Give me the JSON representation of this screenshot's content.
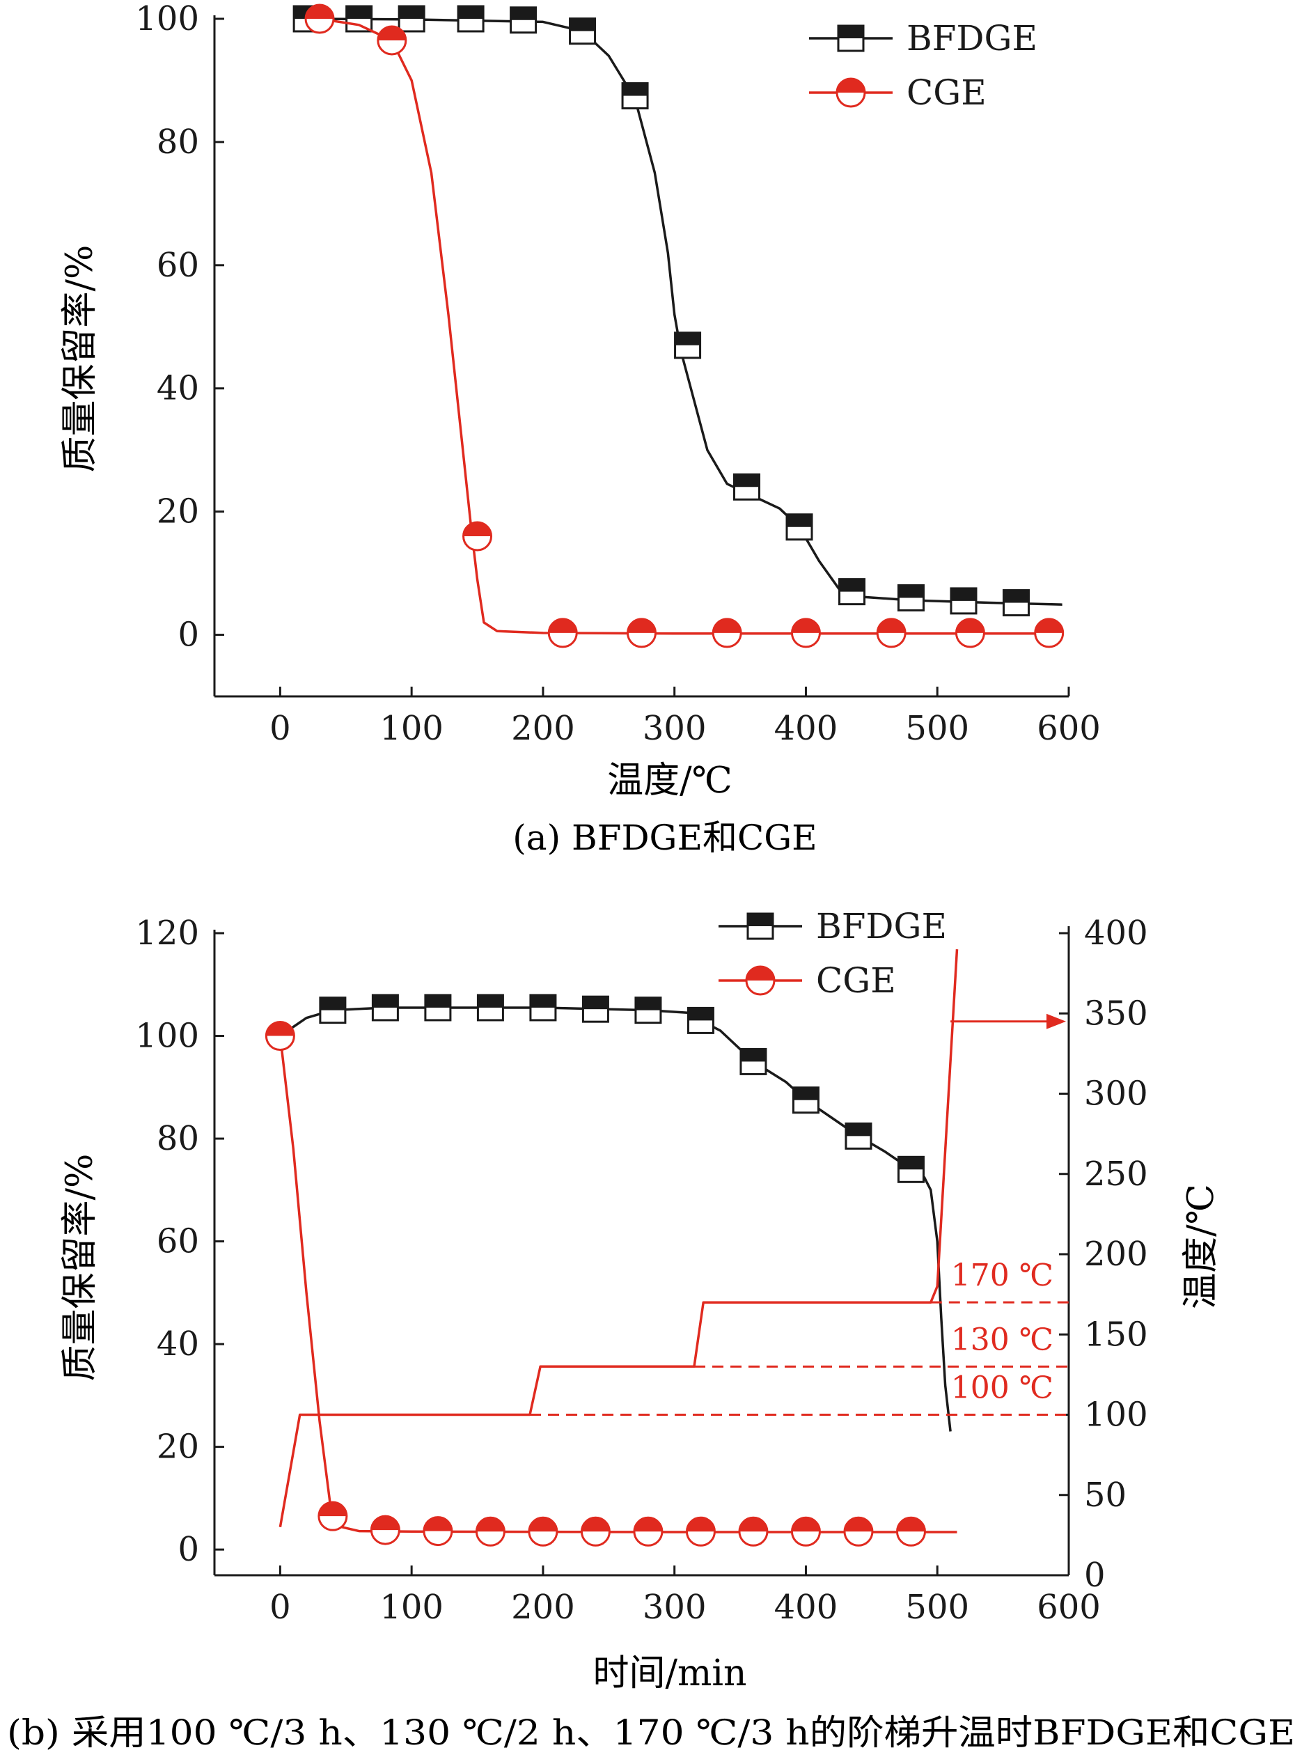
{
  "colors": {
    "black": "#1a1a1a",
    "red": "#e02a1f"
  },
  "chart_data": [
    {
      "type": "line",
      "caption": "(a) BFDGE和CGE",
      "xlabel": "温度/℃",
      "ylabel": "质量保留率/%",
      "xlim": [
        -50,
        600
      ],
      "ylim": [
        -10,
        100
      ],
      "xticks": [
        "0",
        "100",
        "200",
        "300",
        "400",
        "500",
        "600"
      ],
      "yticks": [
        "0",
        "20",
        "40",
        "60",
        "80",
        "100"
      ],
      "legend_position": "top-right",
      "series": [
        {
          "name": "BFDGE",
          "color": "#1a1a1a",
          "marker": "square",
          "curve": [
            [
              20,
              100
            ],
            [
              100,
              99.9
            ],
            [
              200,
              99.5
            ],
            [
              230,
              98
            ],
            [
              250,
              94
            ],
            [
              270,
              87
            ],
            [
              285,
              75
            ],
            [
              295,
              62
            ],
            [
              300,
              52
            ],
            [
              305,
              46
            ],
            [
              315,
              38
            ],
            [
              325,
              30
            ],
            [
              340,
              24.5
            ],
            [
              360,
              22.5
            ],
            [
              380,
              20.5
            ],
            [
              395,
              17.5
            ],
            [
              410,
              12
            ],
            [
              425,
              7.5
            ],
            [
              440,
              6.2
            ],
            [
              480,
              5.6
            ],
            [
              540,
              5.2
            ],
            [
              595,
              4.9
            ]
          ],
          "markers": [
            [
              20,
              100
            ],
            [
              60,
              100
            ],
            [
              100,
              100
            ],
            [
              145,
              100
            ],
            [
              185,
              99.8
            ],
            [
              230,
              98
            ],
            [
              270,
              87.5
            ],
            [
              310,
              47
            ],
            [
              355,
              24
            ],
            [
              395,
              17.5
            ],
            [
              435,
              7
            ],
            [
              480,
              6
            ],
            [
              520,
              5.5
            ],
            [
              560,
              5.2
            ]
          ]
        },
        {
          "name": "CGE",
          "color": "#e02a1f",
          "marker": "circle",
          "curve": [
            [
              30,
              100
            ],
            [
              60,
              99
            ],
            [
              85,
              96.5
            ],
            [
              100,
              90
            ],
            [
              115,
              75
            ],
            [
              128,
              52
            ],
            [
              138,
              32
            ],
            [
              145,
              18
            ],
            [
              150,
              9
            ],
            [
              155,
              2
            ],
            [
              165,
              0.6
            ],
            [
              200,
              0.3
            ],
            [
              300,
              0.2
            ],
            [
              400,
              0.2
            ],
            [
              595,
              0.2
            ]
          ],
          "markers": [
            [
              30,
              100
            ],
            [
              85,
              96.5
            ],
            [
              150,
              16
            ],
            [
              215,
              0.3
            ],
            [
              275,
              0.3
            ],
            [
              340,
              0.3
            ],
            [
              400,
              0.3
            ],
            [
              465,
              0.3
            ],
            [
              525,
              0.3
            ],
            [
              585,
              0.3
            ]
          ]
        }
      ]
    },
    {
      "type": "line",
      "caption": "(b) 采用100 ℃/3 h、130 ℃/2 h、170 ℃/3 h的阶梯升温时BFDGE和CGE",
      "xlabel": "时间/min",
      "ylabel": "质量保留率/%",
      "ylabel_right": "温度/℃",
      "xlim": [
        -50,
        600
      ],
      "ylim": [
        -5,
        120
      ],
      "ylim_right": [
        0,
        400
      ],
      "xticks": [
        "0",
        "100",
        "200",
        "300",
        "400",
        "500",
        "600"
      ],
      "yticks": [
        "0",
        "20",
        "40",
        "60",
        "80",
        "100",
        "120"
      ],
      "yticks_right": [
        "0",
        "50",
        "100",
        "150",
        "200",
        "250",
        "300",
        "350",
        "400"
      ],
      "legend_position": "top-center",
      "annotations": [
        "170 ℃",
        "130 ℃",
        "100 ℃"
      ],
      "series": [
        {
          "name": "BFDGE",
          "color": "#1a1a1a",
          "marker": "square",
          "curve": [
            [
              0,
              100
            ],
            [
              20,
              103.5
            ],
            [
              40,
              105
            ],
            [
              80,
              105.5
            ],
            [
              200,
              105.5
            ],
            [
              280,
              105
            ],
            [
              310,
              104.5
            ],
            [
              320,
              103
            ],
            [
              335,
              101
            ],
            [
              360,
              95
            ],
            [
              385,
              91
            ],
            [
              400,
              87.5
            ],
            [
              420,
              84
            ],
            [
              440,
              80.5
            ],
            [
              460,
              77.5
            ],
            [
              480,
              74
            ],
            [
              490,
              72.5
            ],
            [
              495,
              70
            ],
            [
              500,
              60
            ],
            [
              503,
              45
            ],
            [
              506,
              32
            ],
            [
              510,
              23
            ]
          ],
          "markers": [
            [
              40,
              105
            ],
            [
              80,
              105.5
            ],
            [
              120,
              105.5
            ],
            [
              160,
              105.5
            ],
            [
              200,
              105.5
            ],
            [
              240,
              105.2
            ],
            [
              280,
              105
            ],
            [
              320,
              103
            ],
            [
              360,
              95
            ],
            [
              400,
              87.5
            ],
            [
              440,
              80.5
            ],
            [
              480,
              74
            ]
          ]
        },
        {
          "name": "CGE",
          "color": "#e02a1f",
          "marker": "circle",
          "curve": [
            [
              0,
              100
            ],
            [
              10,
              78
            ],
            [
              20,
              50
            ],
            [
              30,
              25
            ],
            [
              38,
              9
            ],
            [
              45,
              4.5
            ],
            [
              60,
              3.6
            ],
            [
              100,
              3.5
            ],
            [
              300,
              3.4
            ],
            [
              515,
              3.4
            ]
          ],
          "markers": [
            [
              0,
              100
            ],
            [
              40,
              6.5
            ],
            [
              80,
              3.8
            ],
            [
              120,
              3.6
            ],
            [
              160,
              3.5
            ],
            [
              200,
              3.5
            ],
            [
              240,
              3.5
            ],
            [
              280,
              3.5
            ],
            [
              320,
              3.5
            ],
            [
              360,
              3.5
            ],
            [
              400,
              3.5
            ],
            [
              440,
              3.5
            ],
            [
              480,
              3.5
            ]
          ]
        },
        {
          "name": "",
          "color": "#e02a1f",
          "axis": "right",
          "curve": [
            [
              0,
              30
            ],
            [
              15,
              100
            ],
            [
              190,
              100
            ],
            [
              198,
              130
            ],
            [
              315,
              130
            ],
            [
              322,
              170
            ],
            [
              495,
              170
            ],
            [
              500,
              180
            ],
            [
              515,
              390
            ]
          ]
        }
      ]
    }
  ]
}
